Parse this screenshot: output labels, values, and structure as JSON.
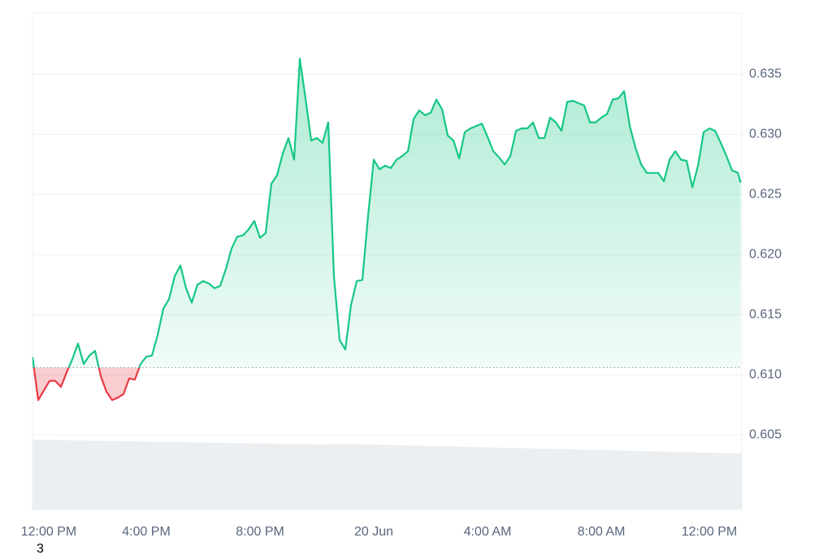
{
  "chart_data": {
    "type": "line",
    "annotation": "3",
    "color": "#16c784",
    "below_color": "#ea3943",
    "baseline": 0.6106,
    "grid": true,
    "xlim": [
      0,
      24.94
    ],
    "ylim": [
      0.5988,
      0.6401
    ],
    "xticks": [
      {
        "value": 0,
        "label": "12:00 PM"
      },
      {
        "value": 4,
        "label": "4:00 PM"
      },
      {
        "value": 8,
        "label": "8:00 PM"
      },
      {
        "value": 12,
        "label": "20 Jun"
      },
      {
        "value": 16,
        "label": "4:00 AM"
      },
      {
        "value": 20,
        "label": "8:00 AM"
      },
      {
        "value": 24,
        "label": "12:00 PM"
      }
    ],
    "yticks": [
      0.605,
      {
        "value": 0.61,
        "label": "0.610"
      },
      0.615,
      {
        "value": 0.62,
        "label": "0.620"
      },
      0.625,
      {
        "value": 0.63,
        "label": "0.630"
      },
      0.635
    ],
    "x": [
      0,
      0.2,
      0.4,
      0.6,
      0.8,
      1,
      1.2,
      1.4,
      1.6,
      1.8,
      2,
      2.2,
      2.4,
      2.6,
      2.8,
      3,
      3.2,
      3.4,
      3.6,
      3.8,
      4,
      4.2,
      4.4,
      4.6,
      4.8,
      5,
      5.2,
      5.4,
      5.6,
      5.8,
      6,
      6.2,
      6.4,
      6.6,
      6.8,
      7,
      7.2,
      7.4,
      7.6,
      7.8,
      8,
      8.2,
      8.4,
      8.6,
      8.8,
      9,
      9.2,
      9.4,
      9.6,
      9.8,
      10,
      10.2,
      10.4,
      10.6,
      10.8,
      11,
      11.2,
      11.4,
      11.6,
      11.8,
      12,
      12.2,
      12.4,
      12.6,
      12.8,
      13,
      13.2,
      13.4,
      13.6,
      13.8,
      14,
      14.2,
      14.4,
      14.6,
      14.8,
      15,
      15.2,
      15.4,
      15.6,
      15.8,
      16,
      16.2,
      16.4,
      16.6,
      16.8,
      17,
      17.2,
      17.4,
      17.6,
      17.8,
      18,
      18.2,
      18.4,
      18.6,
      18.8,
      19,
      19.2,
      19.4,
      19.6,
      19.8,
      20,
      20.2,
      20.4,
      20.6,
      20.8,
      21,
      21.2,
      21.4,
      21.6,
      21.8,
      22,
      22.2,
      22.4,
      22.6,
      22.8,
      23,
      23.2,
      23.4,
      23.6,
      23.8,
      24,
      24.2,
      24.4,
      24.6,
      24.8,
      24.9
    ],
    "values": [
      0.6115,
      0.6079,
      0.6087,
      0.6095,
      0.6095,
      0.609,
      0.6102,
      0.6113,
      0.6126,
      0.6109,
      0.6116,
      0.612,
      0.6099,
      0.6086,
      0.6079,
      0.6081,
      0.6084,
      0.6097,
      0.6096,
      0.6109,
      0.6115,
      0.6116,
      0.6133,
      0.6155,
      0.6163,
      0.6182,
      0.6191,
      0.6172,
      0.616,
      0.6175,
      0.6178,
      0.6176,
      0.6172,
      0.6174,
      0.6188,
      0.6205,
      0.6215,
      0.6216,
      0.6221,
      0.6228,
      0.6214,
      0.6218,
      0.6259,
      0.6266,
      0.6284,
      0.6297,
      0.6279,
      0.6363,
      0.633,
      0.6295,
      0.6297,
      0.6293,
      0.631,
      0.6182,
      0.6129,
      0.6121,
      0.6158,
      0.6178,
      0.6179,
      0.6232,
      0.6279,
      0.6271,
      0.6274,
      0.6272,
      0.6279,
      0.6282,
      0.6286,
      0.6313,
      0.632,
      0.6316,
      0.6318,
      0.6329,
      0.6321,
      0.6299,
      0.6295,
      0.628,
      0.6302,
      0.6305,
      0.6307,
      0.6309,
      0.6298,
      0.6286,
      0.6281,
      0.6275,
      0.6282,
      0.6303,
      0.6305,
      0.6305,
      0.631,
      0.6297,
      0.6297,
      0.6314,
      0.631,
      0.6303,
      0.6327,
      0.6328,
      0.6326,
      0.6324,
      0.631,
      0.631,
      0.6314,
      0.6317,
      0.6329,
      0.633,
      0.6336,
      0.6307,
      0.6289,
      0.6275,
      0.6268,
      0.6268,
      0.6268,
      0.6261,
      0.6279,
      0.6286,
      0.6279,
      0.6278,
      0.6256,
      0.6274,
      0.6302,
      0.6305,
      0.6303,
      0.6293,
      0.6282,
      0.627,
      0.6268,
      0.626
    ]
  }
}
